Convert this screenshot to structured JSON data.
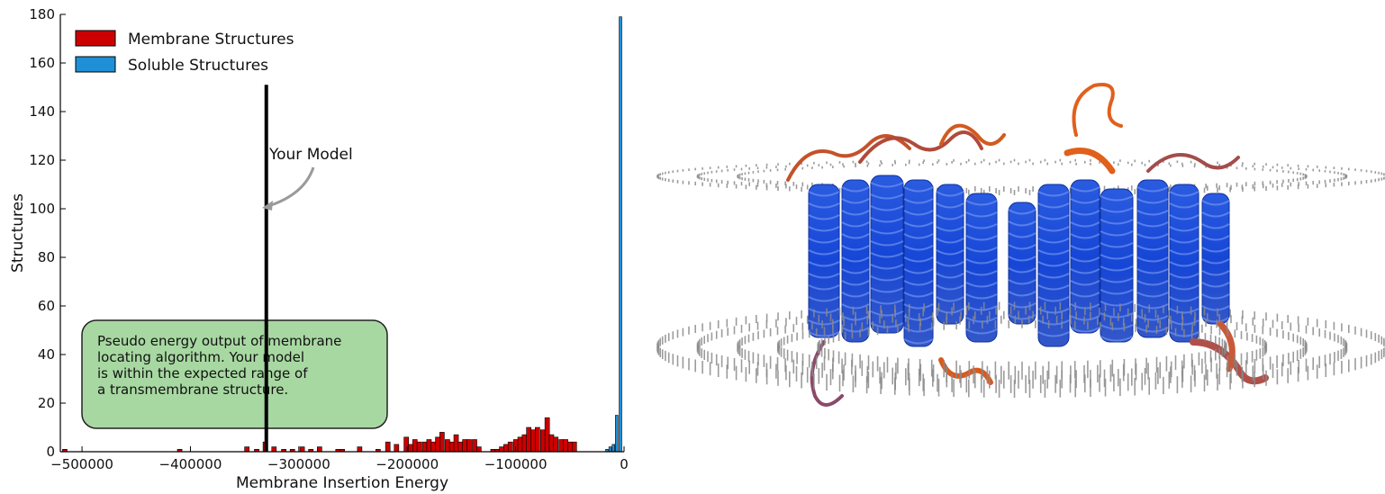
{
  "chart_data": {
    "type": "bar",
    "xlabel": "Membrane Insertion Energy",
    "ylabel": "Structures",
    "xlim": [
      -520000,
      0
    ],
    "ylim": [
      0,
      180
    ],
    "xticks": [
      -500000,
      -400000,
      -300000,
      -200000,
      -100000,
      0
    ],
    "xtick_labels": [
      "−500000",
      "−400000",
      "−300000",
      "−200000",
      "−100000",
      "0"
    ],
    "yticks": [
      0,
      20,
      40,
      60,
      80,
      100,
      120,
      140,
      160,
      180
    ],
    "ytick_labels": [
      "0",
      "20",
      "40",
      "60",
      "80",
      "100",
      "120",
      "140",
      "160",
      "180"
    ],
    "legend_position": "top-left",
    "series": [
      {
        "name": "Membrane Structures",
        "color": "#cc0000",
        "bin_width": 4200,
        "bins": [
          [
            -518000,
            1
          ],
          [
            -412000,
            1
          ],
          [
            -350000,
            2
          ],
          [
            -341000,
            1
          ],
          [
            -333000,
            4
          ],
          [
            -325000,
            2
          ],
          [
            -316000,
            1
          ],
          [
            -308000,
            1
          ],
          [
            -299000,
            2
          ],
          [
            -291000,
            1
          ],
          [
            -283000,
            2
          ],
          [
            -266000,
            1
          ],
          [
            -262000,
            1
          ],
          [
            -246000,
            2
          ],
          [
            -229000,
            1
          ],
          [
            -220000,
            4
          ],
          [
            -212000,
            3
          ],
          [
            -203000,
            6
          ],
          [
            -199000,
            3
          ],
          [
            -195000,
            5
          ],
          [
            -191000,
            4
          ],
          [
            -186000,
            4
          ],
          [
            -182000,
            5
          ],
          [
            -178000,
            4
          ],
          [
            -174000,
            6
          ],
          [
            -170000,
            8
          ],
          [
            -165000,
            5
          ],
          [
            -161000,
            4
          ],
          [
            -157000,
            7
          ],
          [
            -153000,
            4
          ],
          [
            -149000,
            5
          ],
          [
            -145000,
            5
          ],
          [
            -140000,
            5
          ],
          [
            -136000,
            2
          ],
          [
            -123000,
            1
          ],
          [
            -119000,
            1
          ],
          [
            -115000,
            2
          ],
          [
            -111000,
            3
          ],
          [
            -107000,
            4
          ],
          [
            -102000,
            5
          ],
          [
            -98000,
            6
          ],
          [
            -94000,
            7
          ],
          [
            -90000,
            10
          ],
          [
            -86000,
            9
          ],
          [
            -82000,
            10
          ],
          [
            -77000,
            9
          ],
          [
            -73000,
            14
          ],
          [
            -69000,
            7
          ],
          [
            -65000,
            6
          ],
          [
            -60000,
            5
          ],
          [
            -56000,
            5
          ],
          [
            -52000,
            4
          ],
          [
            -48000,
            4
          ]
        ]
      },
      {
        "name": "Soluble Structures",
        "color": "#1f90d8",
        "bin_width": 2400,
        "bins": [
          [
            -17000,
            1
          ],
          [
            -14000,
            2
          ],
          [
            -11000,
            3
          ],
          [
            -8000,
            15
          ],
          [
            -4500,
            179
          ]
        ]
      }
    ],
    "marker": {
      "x": -330000,
      "y_top": 151,
      "label": "Your Model"
    },
    "annotation_box": {
      "lines": [
        "Pseudo energy output of membrane",
        "locating algorithm. Your model",
        "is within the expected range of",
        "a transmembrane structure."
      ]
    }
  },
  "protein_image": {
    "description_icon": "protein-membrane-icon",
    "membrane_color": "#8a8a8a",
    "helix_color": "#1a4fd8",
    "loop_color": "#d8581a"
  }
}
